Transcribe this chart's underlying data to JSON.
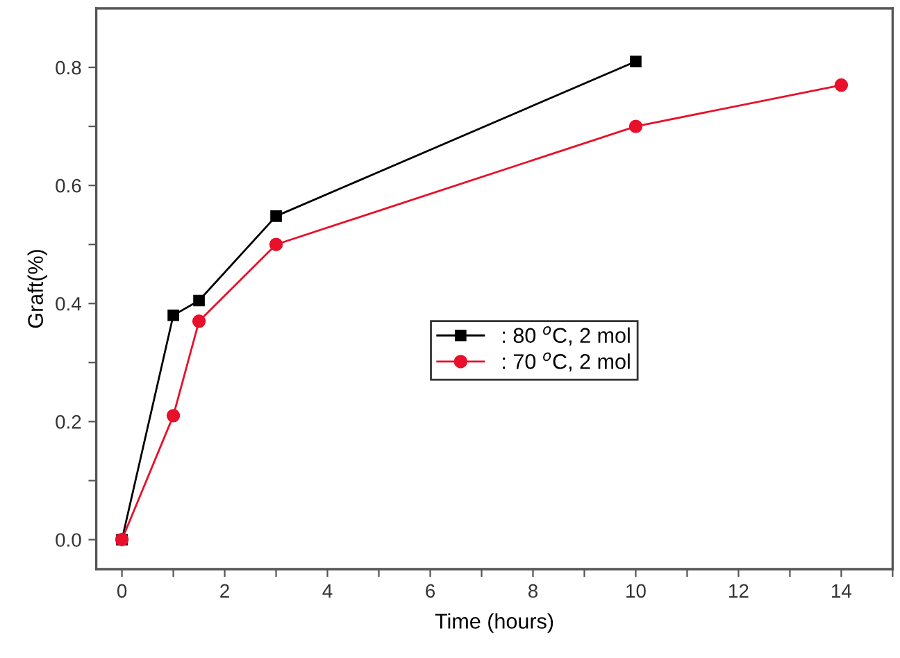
{
  "chart_data": {
    "type": "line",
    "xlabel": "Time (hours)",
    "ylabel": "Graft(%)",
    "xlim": [
      -0.5,
      15
    ],
    "ylim": [
      -0.05,
      0.9
    ],
    "xticks": [
      0,
      {
        "value": 1,
        "label": null
      },
      2,
      {
        "value": 3,
        "label": null
      },
      4,
      {
        "value": 5,
        "label": null
      },
      6,
      {
        "value": 7,
        "label": null
      },
      8,
      {
        "value": 9,
        "label": null
      },
      10,
      {
        "value": 11,
        "label": null
      },
      12,
      {
        "value": 13,
        "label": null
      },
      14,
      {
        "value": 15,
        "label": null
      }
    ],
    "yticks": [
      {
        "value": 0,
        "label": "0.0"
      },
      {
        "value": 0.1,
        "label": null
      },
      0.2,
      {
        "value": 0.3,
        "label": null
      },
      0.4,
      {
        "value": 0.5,
        "label": null
      },
      0.6,
      {
        "value": 0.7,
        "label": null
      },
      0.8
    ],
    "grid": false,
    "legend": "center",
    "series": [
      {
        "name": ": 80 $^{o}$C, 2 mol",
        "color": "#000000",
        "marker": "square",
        "x": [
          0,
          1,
          1.5,
          3,
          10
        ],
        "values": [
          0,
          0.38,
          0.405,
          0.548,
          0.81
        ]
      },
      {
        "name": ": 70 $^{o}$C, 2 mol",
        "color": "#e8102a",
        "marker": "circle",
        "x": [
          0,
          1,
          1.5,
          3,
          10,
          14
        ],
        "values": [
          0,
          0.21,
          0.37,
          0.5,
          0.7,
          0.77
        ]
      }
    ]
  }
}
